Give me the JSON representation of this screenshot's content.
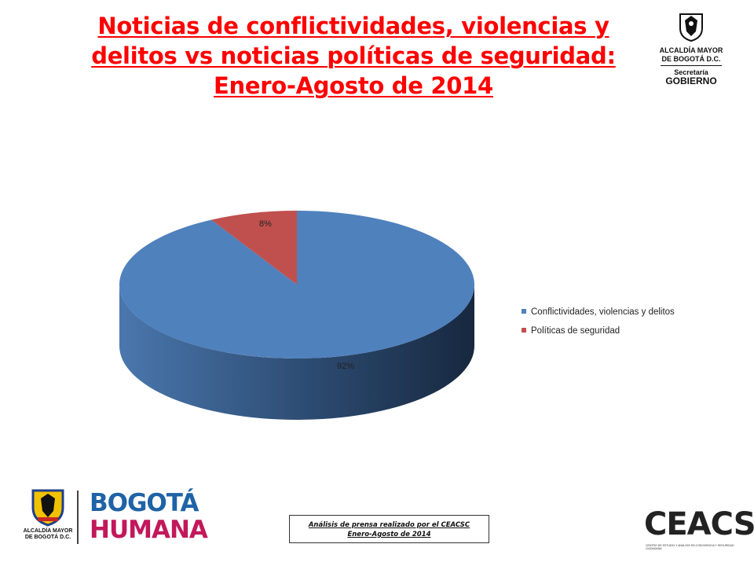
{
  "title_lines": [
    "Noticias de conflictividades, violencias y",
    "delitos vs noticias políticas de seguridad:",
    "Enero-Agosto de 2014"
  ],
  "logo_top_right": {
    "line1": "ALCALDÍA MAYOR",
    "line2": "DE BOGOTÁ D.C.",
    "line3": "Secretaría",
    "line4": "GOBIERNO"
  },
  "chart_data": {
    "type": "pie",
    "style": "3d",
    "categories": [
      "Conflictividades, violencias y delitos",
      "Políticas de seguridad"
    ],
    "values": [
      92,
      8
    ],
    "data_labels": [
      "92%",
      "8%"
    ],
    "colors": [
      "#4f81bd",
      "#c0504d"
    ],
    "legend_position": "right"
  },
  "footer": {
    "line1": "Análisis de prensa realizado por el CEACSC",
    "line2": "Enero-Agosto de 2014"
  },
  "logo_bottom_left": {
    "alcaldia": "ALCALDÍA MAYOR DE BOGOTÁ D.C.",
    "bogota": "BOGOTÁ",
    "humana": "HUMANA"
  },
  "logo_bottom_right": {
    "name": "CEACSC",
    "tagline": "CENTRO DE ESTUDIO Y ANÁLISIS EN CONVIVENCIA Y SEGURIDAD CIUDADANA"
  }
}
